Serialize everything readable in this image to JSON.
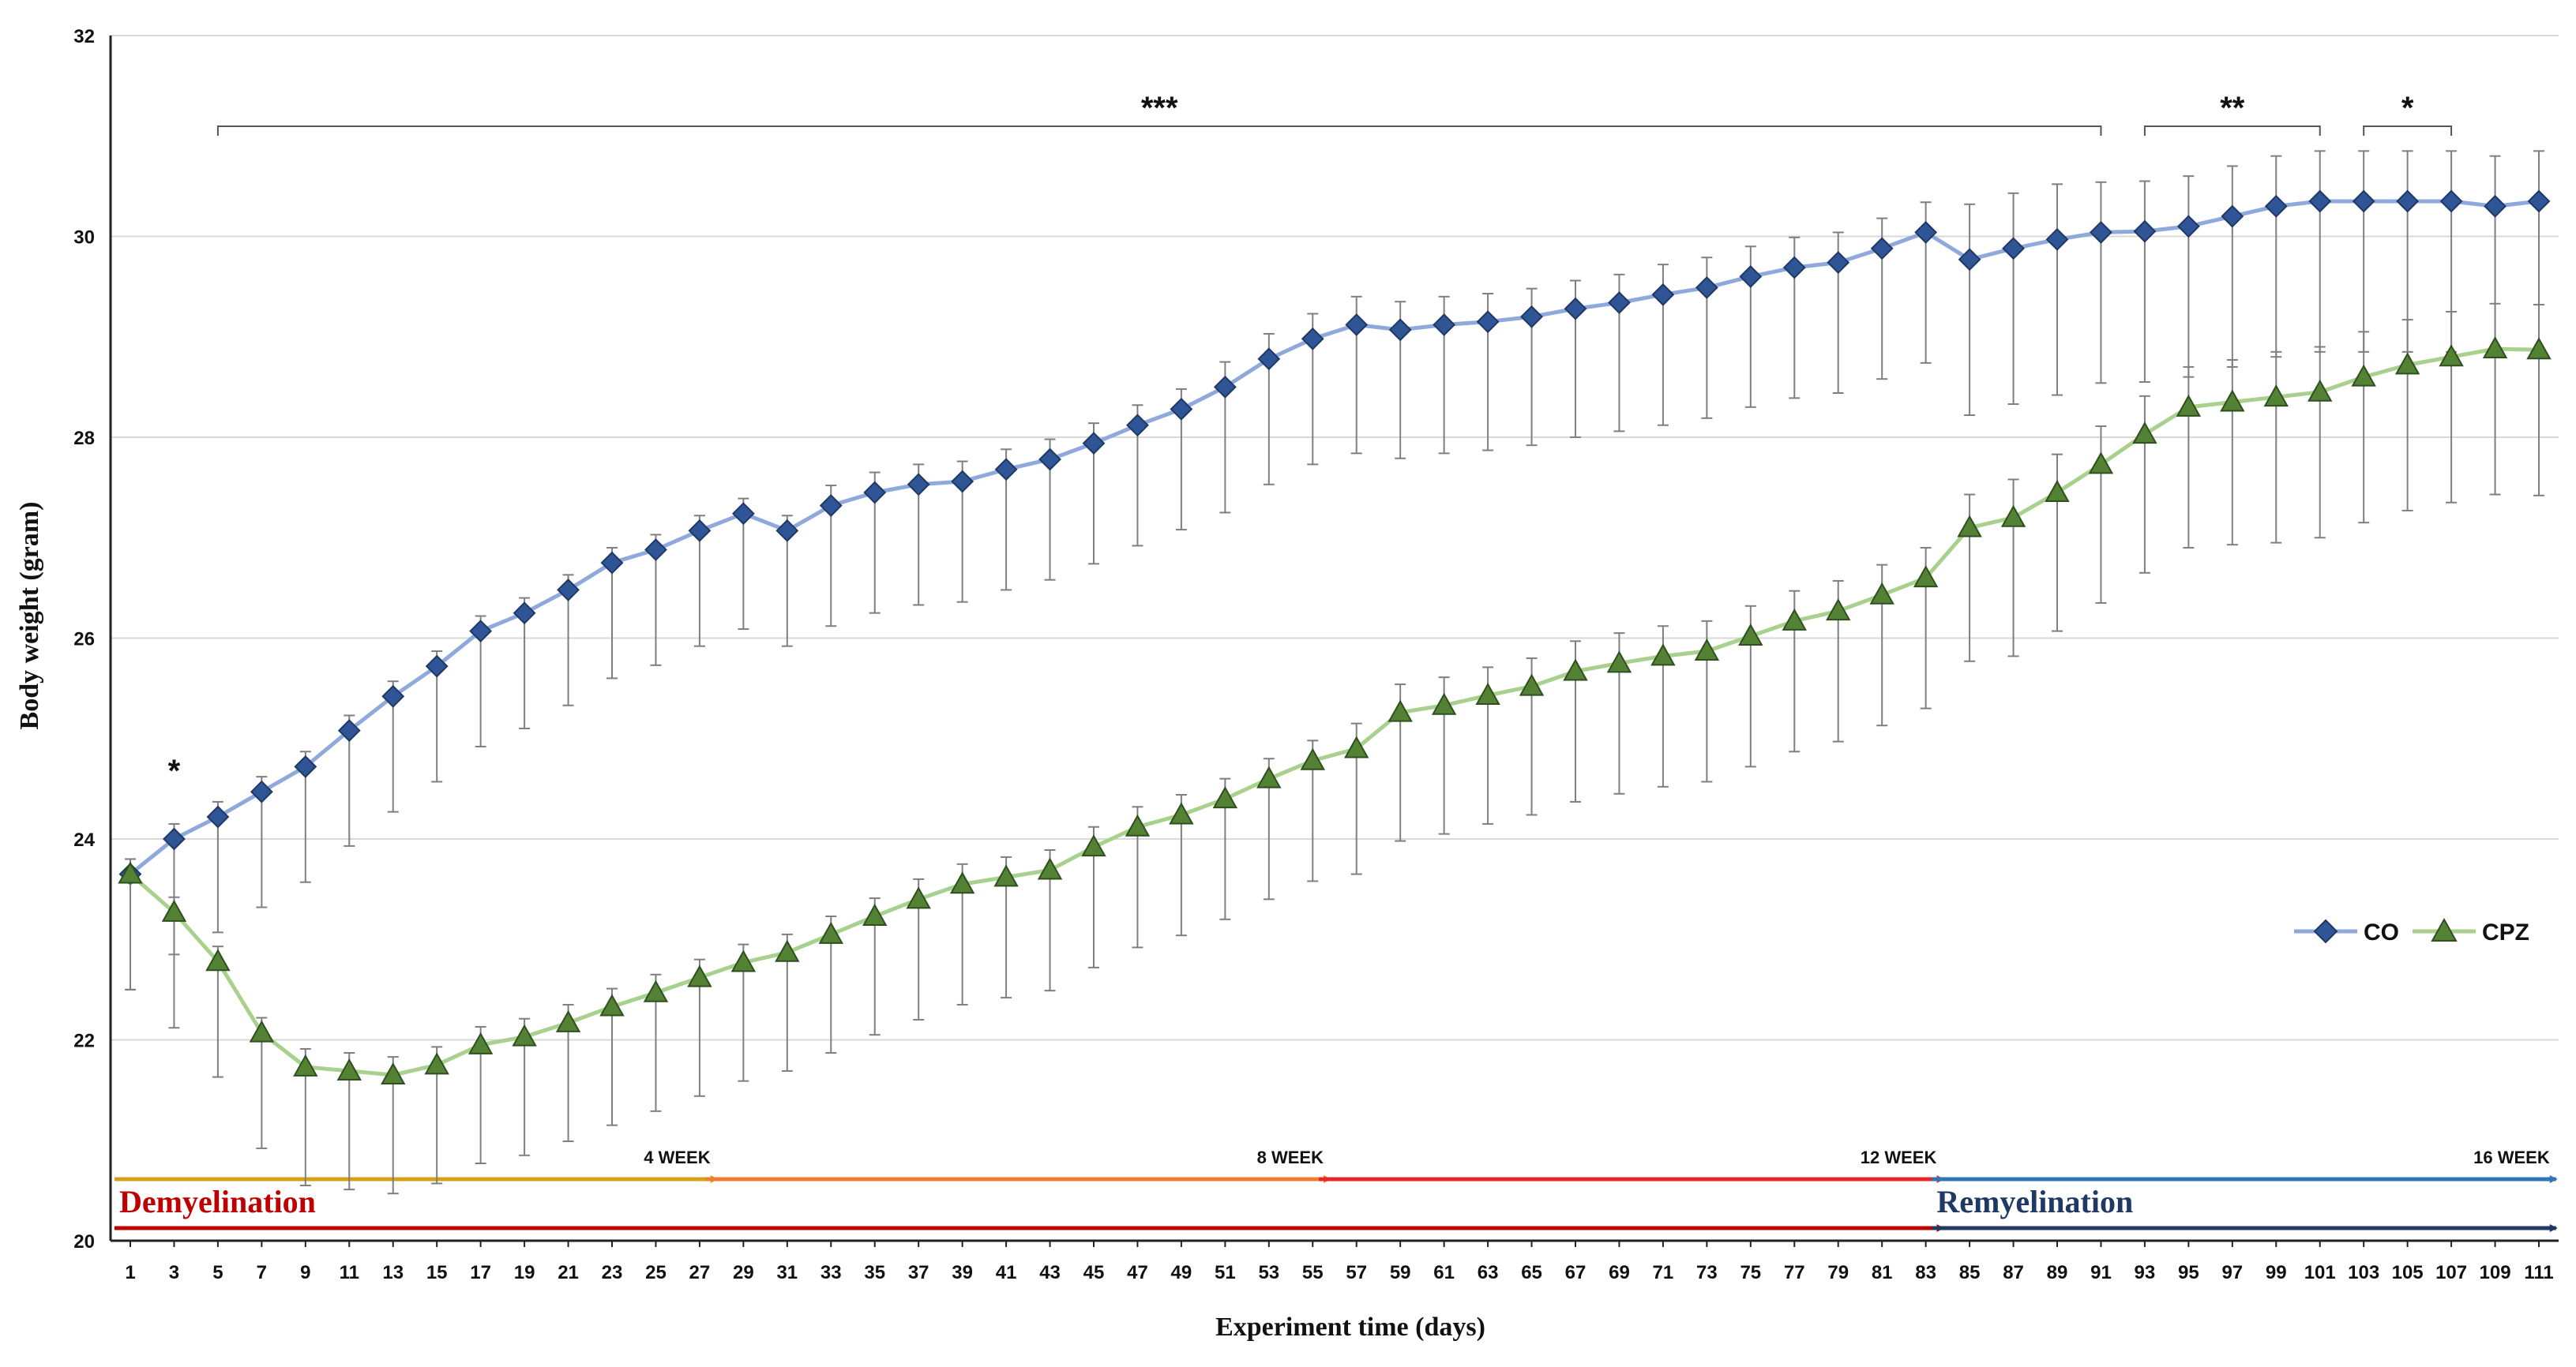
{
  "colors": {
    "co_line": "#8fa9dc",
    "co_marker": "#2f5597",
    "cpz_line": "#a9d18e",
    "cpz_marker": "#548235",
    "error_bar": "#7f7f7f",
    "demyelination_text": "#c00000",
    "remyelination_text": "#1f3864"
  },
  "chart_data": {
    "type": "line",
    "xlabel": "Experiment time (days)",
    "ylabel": "Body weight (gram)",
    "ylim": [
      20,
      32
    ],
    "yticks": [
      "20",
      "22",
      "24",
      "26",
      "28",
      "30",
      "32"
    ],
    "grid": "horizontal",
    "legend": "right",
    "x": [
      1,
      3,
      5,
      7,
      9,
      11,
      13,
      15,
      17,
      19,
      21,
      23,
      25,
      27,
      29,
      31,
      33,
      35,
      37,
      39,
      41,
      43,
      45,
      47,
      49,
      51,
      53,
      55,
      57,
      59,
      61,
      63,
      65,
      67,
      69,
      71,
      73,
      75,
      77,
      79,
      81,
      83,
      85,
      87,
      89,
      91,
      93,
      95,
      97,
      99,
      101,
      103,
      105,
      107,
      109,
      111
    ],
    "series": [
      {
        "name": "CO",
        "marker": "diamond",
        "values": [
          23.65,
          24.0,
          24.22,
          24.47,
          24.72,
          25.08,
          25.42,
          25.72,
          26.07,
          26.25,
          26.48,
          26.75,
          26.88,
          27.07,
          27.24,
          27.07,
          27.32,
          27.45,
          27.53,
          27.56,
          27.68,
          27.78,
          27.94,
          28.12,
          28.28,
          28.5,
          28.78,
          28.98,
          29.12,
          29.07,
          29.12,
          29.15,
          29.2,
          29.28,
          29.34,
          29.42,
          29.49,
          29.6,
          29.69,
          29.74,
          29.88,
          30.04,
          29.77,
          29.88,
          29.97,
          30.04,
          30.05,
          30.1,
          30.2,
          30.3,
          30.35,
          30.35,
          30.35,
          30.35,
          30.3,
          30.35
        ],
        "errors": [
          0.15,
          0.15,
          0.15,
          0.15,
          0.15,
          0.15,
          0.15,
          0.15,
          0.15,
          0.15,
          0.15,
          0.15,
          0.15,
          0.15,
          0.15,
          0.15,
          0.2,
          0.2,
          0.2,
          0.2,
          0.2,
          0.2,
          0.2,
          0.2,
          0.2,
          0.25,
          0.25,
          0.25,
          0.28,
          0.28,
          0.28,
          0.28,
          0.28,
          0.28,
          0.28,
          0.3,
          0.3,
          0.3,
          0.3,
          0.3,
          0.3,
          0.3,
          0.55,
          0.55,
          0.55,
          0.5,
          0.5,
          0.5,
          0.5,
          0.5,
          0.5,
          0.5,
          0.5,
          0.5,
          0.5,
          0.5
        ]
      },
      {
        "name": "CPZ",
        "marker": "triangle",
        "values": [
          23.65,
          23.27,
          22.78,
          22.07,
          21.73,
          21.69,
          21.65,
          21.75,
          21.95,
          22.03,
          22.17,
          22.33,
          22.47,
          22.62,
          22.77,
          22.87,
          23.05,
          23.23,
          23.4,
          23.55,
          23.62,
          23.69,
          23.92,
          24.12,
          24.24,
          24.4,
          24.6,
          24.78,
          24.9,
          25.26,
          25.33,
          25.43,
          25.52,
          25.67,
          25.75,
          25.82,
          25.87,
          26.02,
          26.17,
          26.27,
          26.43,
          26.6,
          27.1,
          27.2,
          27.45,
          27.73,
          28.03,
          28.3,
          28.35,
          28.4,
          28.45,
          28.6,
          28.72,
          28.8,
          28.88,
          28.87
        ],
        "errors": [
          0.15,
          0.15,
          0.15,
          0.15,
          0.18,
          0.18,
          0.18,
          0.18,
          0.18,
          0.18,
          0.18,
          0.18,
          0.18,
          0.18,
          0.18,
          0.18,
          0.18,
          0.18,
          0.2,
          0.2,
          0.2,
          0.2,
          0.2,
          0.2,
          0.2,
          0.2,
          0.2,
          0.2,
          0.25,
          0.28,
          0.28,
          0.28,
          0.28,
          0.3,
          0.3,
          0.3,
          0.3,
          0.3,
          0.3,
          0.3,
          0.3,
          0.3,
          0.33,
          0.38,
          0.38,
          0.38,
          0.38,
          0.4,
          0.42,
          0.45,
          0.45,
          0.45,
          0.45,
          0.45,
          0.45,
          0.45
        ]
      }
    ],
    "error_low_extra": 1.0,
    "significance": [
      {
        "label": "*",
        "x": 3,
        "bracket": false
      },
      {
        "label": "***",
        "from": 5,
        "to": 91,
        "bracket": true
      },
      {
        "label": "**",
        "from": 93,
        "to": 101,
        "bracket": true
      },
      {
        "label": "*",
        "from": 103,
        "to": 107,
        "bracket": true
      }
    ],
    "week_markers": [
      {
        "label": "4 WEEK",
        "from": 1,
        "to": 28,
        "color": "#d4a017"
      },
      {
        "label": "8 WEEK",
        "from": 28,
        "to": 56,
        "color": "#f07c30"
      },
      {
        "label": "12 WEEK",
        "from": 56,
        "to": 84,
        "color": "#e8262a"
      },
      {
        "label": "16 WEEK",
        "from": 84,
        "to": 112,
        "color": "#2e75b6"
      }
    ],
    "phases": [
      {
        "label": "Demyelination",
        "from": 1,
        "to": 84,
        "arrow_color": "#c00000"
      },
      {
        "label": "Remyelination",
        "from": 84,
        "to": 112,
        "arrow_color": "#1f3864"
      }
    ]
  }
}
